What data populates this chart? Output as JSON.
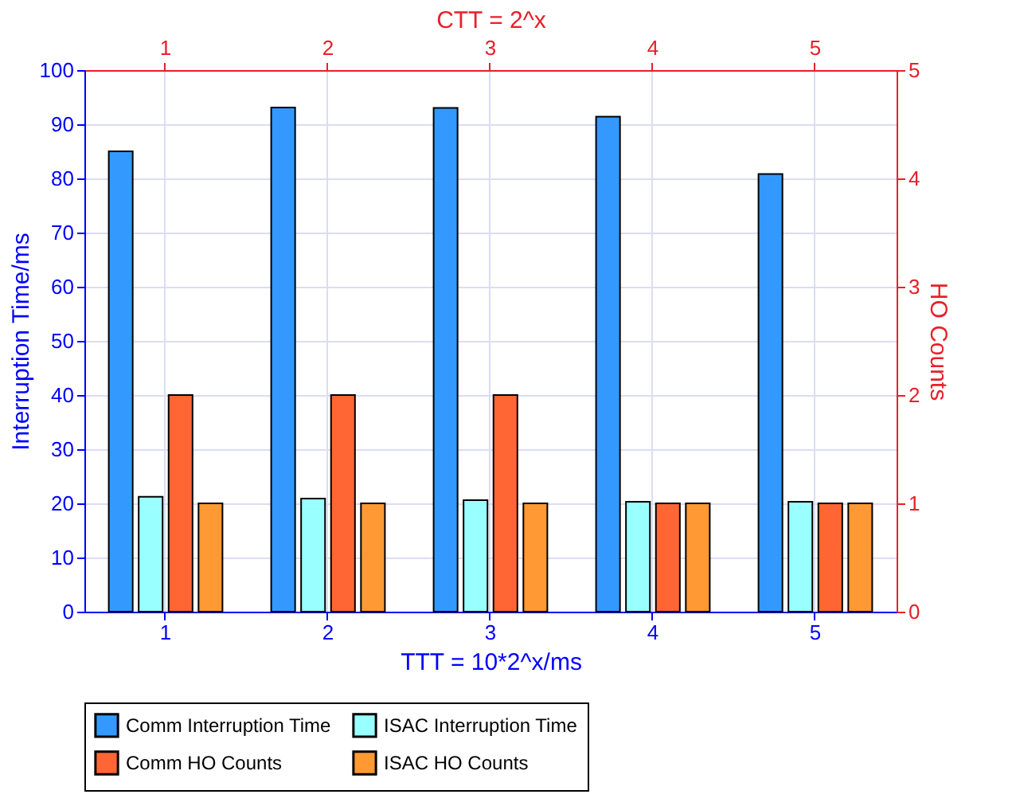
{
  "chart_data": {
    "type": "bar",
    "xlabel": "TTT = 10*2^x/ms",
    "x2label": "CTT = 2^x",
    "ylabel": "Interruption Time/ms",
    "y2label": "HO Counts",
    "categories": [
      "1",
      "2",
      "3",
      "4",
      "5"
    ],
    "series": [
      {
        "name": "Comm Interruption Time",
        "color": "#3399ff",
        "values": [
          85,
          93.1,
          93,
          91.4,
          80.8
        ]
      },
      {
        "name": "ISAC Interruption Time",
        "color": "#99ffff",
        "values": [
          21.2,
          20.9,
          20.6,
          20.3,
          20.3
        ]
      },
      {
        "name": "Comm HO Counts",
        "color": "#ff6633",
        "axis": "y2",
        "values": [
          2,
          2,
          2,
          1,
          1
        ]
      },
      {
        "name": "ISAC HO Counts",
        "color": "#ff9933",
        "axis": "y2",
        "values": [
          1,
          1,
          1,
          1,
          1
        ]
      }
    ],
    "ylim": [
      0,
      100
    ],
    "yticks": [
      0,
      10,
      20,
      30,
      40,
      50,
      60,
      70,
      80,
      90,
      100
    ],
    "y2lim": [
      0,
      5
    ],
    "y2ticks": [
      0,
      1,
      2,
      3,
      4,
      5
    ],
    "grid": true,
    "legend": "bottom"
  }
}
